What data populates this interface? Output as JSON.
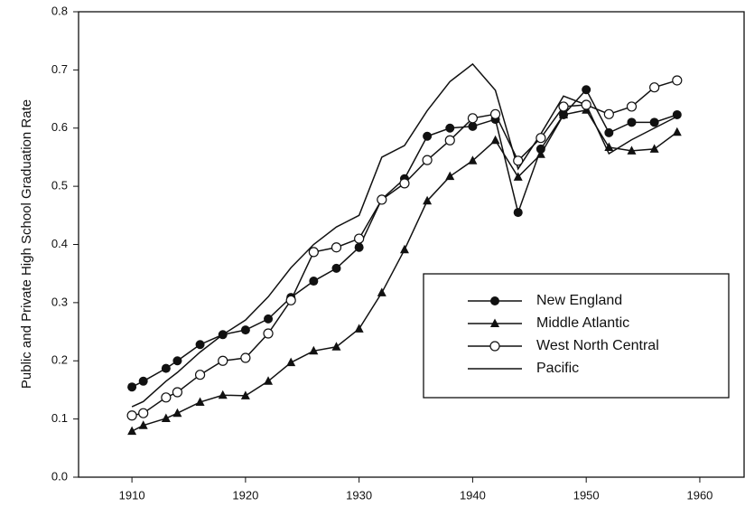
{
  "chart_data": {
    "type": "line",
    "y_label": "Public and Private High School Graduation Rate",
    "x": [
      1910,
      1911,
      1913,
      1914,
      1916,
      1918,
      1920,
      1922,
      1924,
      1926,
      1928,
      1930,
      1932,
      1934,
      1936,
      1938,
      1940,
      1942,
      1944,
      1946,
      1948,
      1950,
      1952,
      1954,
      1956,
      1958
    ],
    "series": [
      {
        "name": "New England",
        "color": "#111111",
        "marker": "circle-filled",
        "values": [
          0.155,
          0.165,
          0.187,
          0.2,
          0.228,
          0.245,
          0.253,
          0.272,
          0.309,
          0.337,
          0.359,
          0.395,
          0.478,
          0.513,
          0.586,
          0.6,
          0.603,
          0.615,
          0.455,
          0.564,
          0.623,
          0.666,
          0.592,
          0.61,
          0.61,
          0.623
        ]
      },
      {
        "name": "Middle Atlantic",
        "color": "#111111",
        "marker": "triangle",
        "values": [
          0.079,
          0.089,
          0.101,
          0.11,
          0.129,
          0.141,
          0.14,
          0.165,
          0.197,
          0.217,
          0.224,
          0.255,
          0.317,
          0.391,
          0.475,
          0.517,
          0.544,
          0.579,
          0.516,
          0.555,
          0.623,
          0.631,
          0.567,
          0.561,
          0.564,
          0.593
        ]
      },
      {
        "name": "West North Central",
        "color": "#111111",
        "marker": "circle-open",
        "values": [
          0.106,
          0.11,
          0.137,
          0.146,
          0.176,
          0.2,
          0.205,
          0.247,
          0.304,
          0.387,
          0.395,
          0.41,
          0.477,
          0.505,
          0.545,
          0.579,
          0.617,
          0.624,
          0.544,
          0.583,
          0.637,
          0.64,
          0.624,
          0.637,
          0.67,
          0.682
        ]
      },
      {
        "name": "Pacific",
        "color": "#111111",
        "marker": "none",
        "values": [
          0.121,
          0.13,
          0.165,
          0.18,
          0.215,
          0.245,
          0.27,
          0.31,
          0.36,
          0.4,
          0.43,
          0.45,
          0.55,
          0.57,
          0.63,
          0.68,
          0.71,
          0.665,
          0.53,
          0.59,
          0.655,
          0.64,
          0.556,
          0.58,
          0.6,
          0.62
        ]
      }
    ],
    "xlim": [
      1905.3,
      1963.9
    ],
    "xticks": [
      1910,
      1920,
      1930,
      1940,
      1950,
      1960
    ],
    "ylim": [
      0,
      0.8
    ],
    "yticks": [
      {
        "value": 0,
        "label": "0.0"
      },
      0.1,
      0.2,
      0.3,
      0.4,
      0.5,
      0.6,
      0.7,
      0.8
    ],
    "grid": false,
    "legend": "lower right"
  }
}
